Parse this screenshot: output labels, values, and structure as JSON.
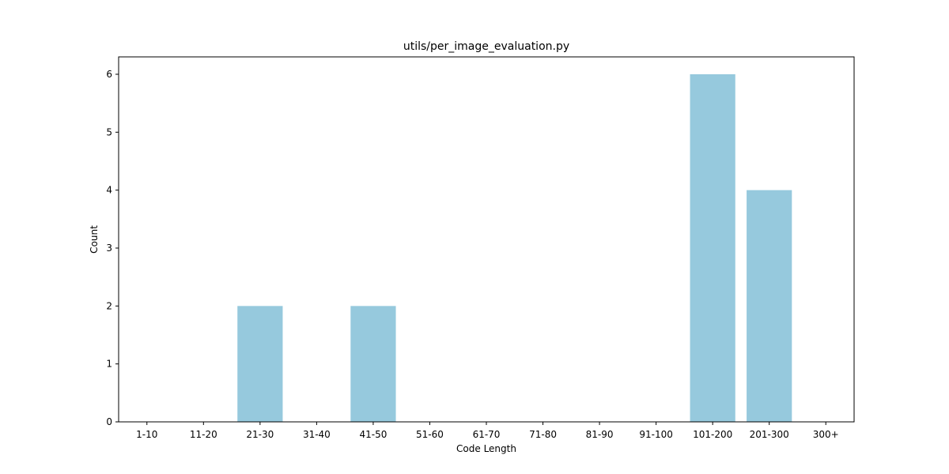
{
  "chart_data": {
    "type": "bar",
    "title": "utils/per_image_evaluation.py",
    "xlabel": "Code Length",
    "ylabel": "Count",
    "categories": [
      "1-10",
      "11-20",
      "21-30",
      "31-40",
      "41-50",
      "51-60",
      "61-70",
      "71-80",
      "81-90",
      "91-100",
      "101-200",
      "201-300",
      "300+"
    ],
    "values": [
      0,
      0,
      2,
      0,
      2,
      0,
      0,
      0,
      0,
      0,
      6,
      4,
      0
    ],
    "ylim": [
      0,
      6.3
    ],
    "yticks": [
      0,
      1,
      2,
      3,
      4,
      5,
      6
    ],
    "bar_color": "#96c9dd",
    "grid": false,
    "legend": "none"
  }
}
